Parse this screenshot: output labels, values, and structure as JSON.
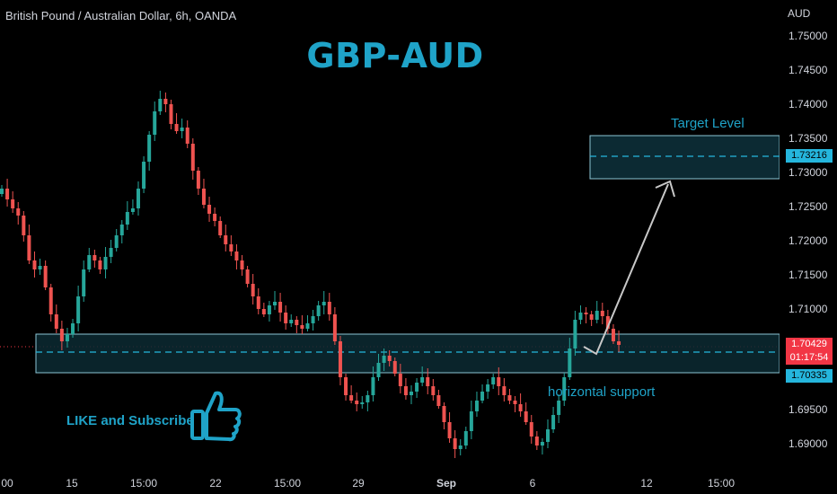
{
  "header": {
    "symbol_title": "British Pound / Australian Dollar, 6h, OANDA",
    "currency": "AUD",
    "headline": "GBP-AUD"
  },
  "price_scale": {
    "ticks": [
      "1.75000",
      "1.74500",
      "1.74000",
      "1.73500",
      "1.73000",
      "1.72500",
      "1.72000",
      "1.71500",
      "1.71000",
      "1.69500",
      "1.69000"
    ]
  },
  "time_axis": {
    "ticks": [
      {
        "label": "00",
        "bold": false
      },
      {
        "label": "15",
        "bold": false
      },
      {
        "label": "15:00",
        "bold": false
      },
      {
        "label": "22",
        "bold": false
      },
      {
        "label": "15:00",
        "bold": false
      },
      {
        "label": "29",
        "bold": false
      },
      {
        "label": "Sep",
        "bold": true
      },
      {
        "label": "6",
        "bold": false
      },
      {
        "label": "12",
        "bold": false
      },
      {
        "label": "15:00",
        "bold": false
      }
    ]
  },
  "badges": {
    "last_price": "1.70429",
    "countdown": "01:17:54",
    "support_level": "1.70335",
    "target_level": "1.73216"
  },
  "annotations": {
    "target_label": "Target Level",
    "support_label": "horizontal support",
    "like_label": "LIKE and Subscribe",
    "thumb_icon": "thumbs-up-icon"
  },
  "colors": {
    "background": "#000000",
    "bull": "#26a69a",
    "bear": "#ef5350",
    "accent": "#1fa3c8",
    "zone_fill": "#0c2a33",
    "zone_border": "#8cc6d6",
    "price_badge": "#f23645",
    "level_badge": "#25b6dd"
  }
}
